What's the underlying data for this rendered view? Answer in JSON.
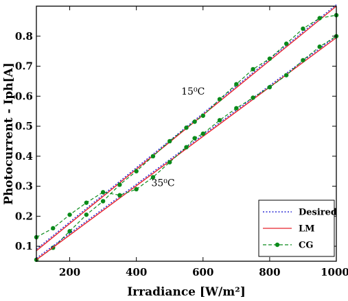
{
  "chart_data": {
    "type": "line",
    "title": "",
    "xlabel": "Irradiance [W/m²]",
    "ylabel": "Photocurrent - Iph[A]",
    "xlim": [
      100,
      1000
    ],
    "ylim": [
      0.05,
      0.9
    ],
    "xticks": [
      "200",
      "400",
      "600",
      "800",
      "1000"
    ],
    "yticks": [
      "0.1",
      "0.2",
      "0.3",
      "0.4",
      "0.5",
      "0.6",
      "0.7",
      "0.8"
    ],
    "grid": false,
    "legend_position": "bottom-right",
    "annotations": [
      {
        "text": "15⁰C",
        "x": 570,
        "y": 0.605
      },
      {
        "text": "35⁰C",
        "x": 480,
        "y": 0.3
      }
    ],
    "series": [
      {
        "name": "Desired",
        "group": "15⁰C",
        "color": "#0000cc",
        "style": "dotted",
        "x": [
          100,
          1000
        ],
        "y": [
          0.09,
          0.905
        ]
      },
      {
        "name": "LM",
        "group": "15⁰C",
        "color": "#e8202a",
        "style": "solid",
        "x": [
          100,
          1000
        ],
        "y": [
          0.085,
          0.9
        ]
      },
      {
        "name": "CG",
        "group": "15⁰C",
        "color": "#0a8a1a",
        "style": "dashed",
        "marker": "circle",
        "x": [
          100,
          150,
          200,
          250,
          300,
          350,
          400,
          450,
          500,
          550,
          575,
          600,
          650,
          700,
          750,
          800,
          850,
          900,
          950,
          1000
        ],
        "y": [
          0.055,
          0.095,
          0.15,
          0.205,
          0.25,
          0.305,
          0.35,
          0.4,
          0.45,
          0.495,
          0.515,
          0.535,
          0.59,
          0.64,
          0.69,
          0.725,
          0.775,
          0.825,
          0.86,
          0.87
        ]
      },
      {
        "name": "Desired",
        "group": "35⁰C",
        "color": "#0000cc",
        "style": "dotted",
        "x": [
          100,
          1000
        ],
        "y": [
          0.06,
          0.8
        ]
      },
      {
        "name": "LM",
        "group": "35⁰C",
        "color": "#e8202a",
        "style": "solid",
        "x": [
          100,
          1000
        ],
        "y": [
          0.055,
          0.795
        ]
      },
      {
        "name": "CG",
        "group": "35⁰C",
        "color": "#0a8a1a",
        "style": "dashed",
        "marker": "circle",
        "x": [
          100,
          150,
          200,
          250,
          300,
          350,
          400,
          450,
          500,
          550,
          575,
          600,
          650,
          700,
          750,
          800,
          850,
          900,
          950,
          1000
        ],
        "y": [
          0.13,
          0.16,
          0.205,
          0.245,
          0.28,
          0.27,
          0.29,
          0.33,
          0.38,
          0.43,
          0.46,
          0.475,
          0.52,
          0.56,
          0.595,
          0.63,
          0.67,
          0.72,
          0.765,
          0.8
        ]
      }
    ]
  }
}
